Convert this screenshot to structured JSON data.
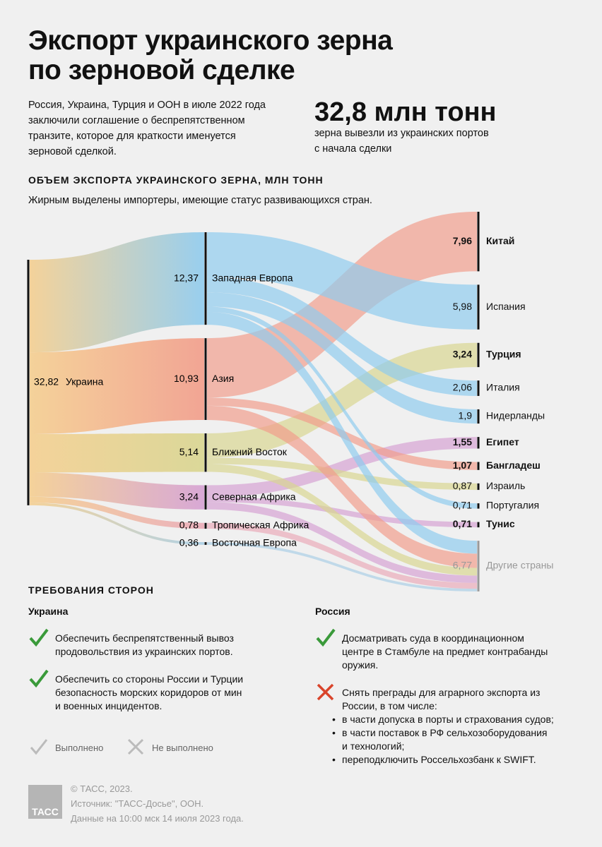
{
  "header": {
    "title_lines": [
      "Экспорт украинского зерна",
      "по зерновой сделке"
    ],
    "intro_lines": [
      "Россия, Украина, Турция и ООН в июле 2022 года",
      "заключили соглашение о беспрепятственном",
      "транзите, которое для краткости именуется",
      "зерновой сделкой."
    ],
    "big_number": "32,8 млн тонн",
    "big_number_caption_lines": [
      "зерна вывезли из украинских портов",
      "с начала сделки"
    ]
  },
  "chart_data": {
    "type": "sankey",
    "title": "ОБЪЕМ ЭКСПОРТА УКРАИНСКОГО ЗЕРНА, МЛН ТОНН",
    "subtitle": "Жирным выделены импортеры, имеющие статус развивающихся стран.",
    "source": {
      "name": "Украина",
      "value": 32.82,
      "value_label": "32,82",
      "color": "#f5cf90"
    },
    "regions": {
      "names": [
        "Западная Европа",
        "Азия",
        "Ближний Восток",
        "Северная Африка",
        "Тропическая Африка",
        "Восточная Европа"
      ],
      "values": [
        12.37,
        10.93,
        5.14,
        3.24,
        0.78,
        0.36
      ],
      "value_labels": [
        "12,37",
        "10,93",
        "5,14",
        "3,24",
        "0,78",
        "0,36"
      ],
      "colors": [
        "#8ecbef",
        "#f29c8a",
        "#d8d58f",
        "#d5a0d3",
        "#eaaab8",
        "#a9cfe6"
      ]
    },
    "destinations": {
      "names": [
        "Китай",
        "Испания",
        "Турция",
        "Италия",
        "Нидерланды",
        "Египет",
        "Бангладеш",
        "Израиль",
        "Португалия",
        "Тунис",
        "Другие страны"
      ],
      "values": [
        7.96,
        5.98,
        3.24,
        2.06,
        1.9,
        1.55,
        1.07,
        0.87,
        0.71,
        0.71,
        6.77
      ],
      "value_labels": [
        "7,96",
        "5,98",
        "3,24",
        "2,06",
        "1,9",
        "1,55",
        "1,07",
        "0,87",
        "0,71",
        "0,71",
        "6,77"
      ],
      "bold": [
        true,
        false,
        true,
        false,
        false,
        true,
        true,
        false,
        false,
        true,
        false
      ],
      "label_colors": [
        "#111111",
        "#111111",
        "#111111",
        "#111111",
        "#111111",
        "#111111",
        "#111111",
        "#111111",
        "#111111",
        "#111111",
        "#999999"
      ]
    },
    "links": {
      "from": [
        0,
        0,
        0,
        0,
        0,
        1,
        1,
        1,
        2,
        2,
        2,
        3,
        3,
        3,
        4,
        5
      ],
      "to": [
        1,
        3,
        4,
        8,
        10,
        0,
        6,
        10,
        2,
        7,
        10,
        5,
        9,
        10,
        10,
        10
      ],
      "values": [
        5.98,
        2.06,
        1.9,
        0.71,
        1.72,
        7.96,
        1.07,
        1.9,
        3.24,
        0.87,
        1.03,
        1.55,
        0.71,
        0.98,
        0.78,
        0.36
      ]
    }
  },
  "requirements": {
    "title": "ТРЕБОВАНИЯ СТОРОН",
    "ukraine": {
      "heading": "Украина",
      "items": [
        {
          "status": "done",
          "lines": [
            "Обеспечить беспрепятственный вывоз",
            "продовольствия из украинских портов."
          ]
        },
        {
          "status": "done",
          "lines": [
            "Обеспечить со стороны России и Турции",
            "безопасность морских коридоров от мин",
            "и военных инцидентов."
          ]
        }
      ]
    },
    "russia": {
      "heading": "Россия",
      "items": [
        {
          "status": "done",
          "lines": [
            "Досматривать суда в координационном",
            "центре в Стамбуле на предмет контрабанды",
            "оружия."
          ]
        },
        {
          "status": "not_done",
          "lines": [
            "Снять преграды для аграрного экспорта из",
            "России, в том числе:"
          ]
        }
      ],
      "bullets": [
        [
          "в части допуска в порты и страхования судов;"
        ],
        [
          "в части поставок в РФ сельхозоборудования",
          "и технологий;"
        ],
        [
          "переподключить Россельхозбанк к SWIFT."
        ]
      ]
    },
    "legend": {
      "done": "Выполнено",
      "not_done": "Не выполнено"
    }
  },
  "footer": {
    "logo": "ТАСС",
    "lines": [
      "© ТАСС, 2023.",
      "Источник: \"ТАСС-Досье\", ООН.",
      "Данные на 10:00 мск 14 июля 2023 года."
    ]
  }
}
